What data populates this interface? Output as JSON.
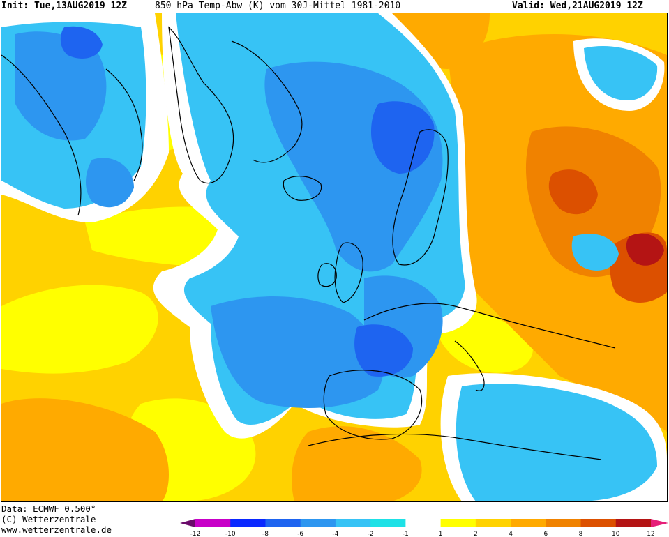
{
  "header": {
    "init": "Init: Tue,13AUG2019 12Z",
    "title": "850 hPa Temp-Abw (K) vom 30J-Mittel 1981-2010",
    "valid": "Valid: Wed,21AUG2019 12Z"
  },
  "footer": {
    "data_source": "Data: ECMWF  0.500°",
    "copyright": "(C) Wetterzentrale",
    "url": "www.wetterzentrale.de"
  },
  "legend": {
    "ticks": [
      "-12",
      "-10",
      "-8",
      "-6",
      "-4",
      "-2",
      "-1",
      "1",
      "2",
      "4",
      "6",
      "8",
      "10",
      "12"
    ],
    "colors": [
      "#6a0a6a",
      "#c800c8",
      "#0a28ff",
      "#1e64f0",
      "#2d96f0",
      "#37c3f5",
      "#1ee1e6",
      "#ffffff",
      "#ffff00",
      "#ffd200",
      "#ffaa00",
      "#f08200",
      "#dc5000",
      "#b41414",
      "#e61e78"
    ]
  },
  "map": {
    "region": "North Atlantic and Europe",
    "anomaly_colors": {
      "cold_strong": "#1e64f0",
      "cold": "#2d96f0",
      "cold_weak": "#37c3f5",
      "neutral": "#ffffff",
      "warm_weak": "#ffff00",
      "warm": "#ffd200",
      "warm_mid": "#ffaa00",
      "warm_strong": "#f08200",
      "hot": "#dc5000",
      "very_hot": "#b41414"
    }
  }
}
